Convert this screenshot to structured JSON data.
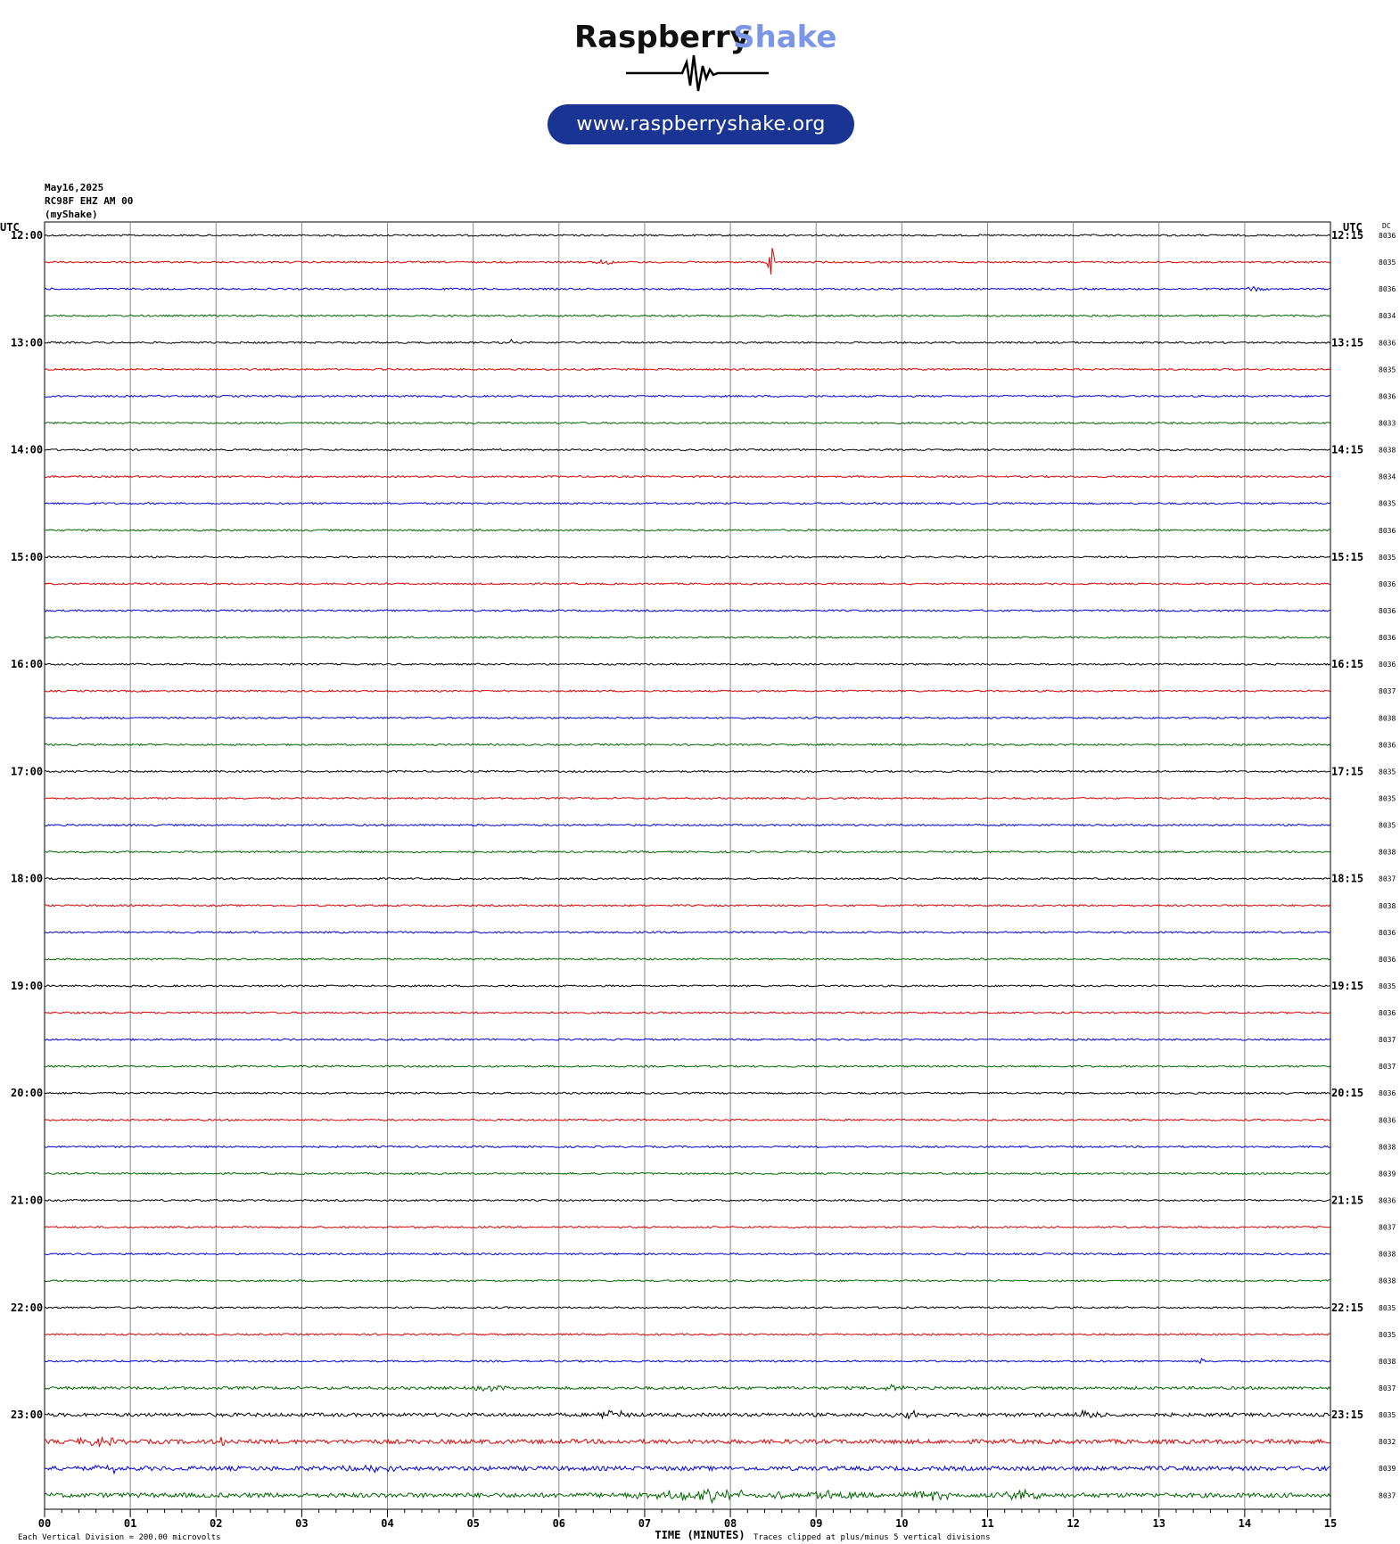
{
  "brand": {
    "name_part1": "Raspberry",
    "name_part2": "Shake",
    "url": "www.raspberryshake.org",
    "color_dark": "#111111",
    "color_accent": "#7b96e6",
    "pill_color": "#1a3493"
  },
  "header": {
    "date": "May16,2025",
    "station": "RC98F EHZ AM 00",
    "source": "(myShake)"
  },
  "chart_data": {
    "type": "line",
    "title": "",
    "xlabel": "TIME (MINUTES)",
    "left_axis_title": "UTC",
    "right_axis_title": "UTC",
    "dc_title": "DC",
    "xlim": [
      0,
      15
    ],
    "x_ticks": [
      "00",
      "01",
      "02",
      "03",
      "04",
      "05",
      "06",
      "07",
      "08",
      "09",
      "10",
      "11",
      "12",
      "13",
      "14",
      "15"
    ],
    "trace_colors": [
      "#000000",
      "#dd0000",
      "#0000dd",
      "#006600"
    ],
    "hour_rows": [
      {
        "left": "12:00",
        "right": "12:15",
        "dc": [
          "8036",
          "8035",
          "8036",
          "8034"
        ]
      },
      {
        "left": "13:00",
        "right": "13:15",
        "dc": [
          "8036",
          "8035",
          "8036",
          "8033"
        ]
      },
      {
        "left": "14:00",
        "right": "14:15",
        "dc": [
          "8038",
          "8034",
          "8035",
          "8036"
        ]
      },
      {
        "left": "15:00",
        "right": "15:15",
        "dc": [
          "8035",
          "8036",
          "8036",
          "8036"
        ]
      },
      {
        "left": "16:00",
        "right": "16:15",
        "dc": [
          "8036",
          "8037",
          "8038",
          "8036"
        ]
      },
      {
        "left": "17:00",
        "right": "17:15",
        "dc": [
          "8035",
          "8035",
          "8035",
          "8038"
        ]
      },
      {
        "left": "18:00",
        "right": "18:15",
        "dc": [
          "8037",
          "8038",
          "8036",
          "8036"
        ]
      },
      {
        "left": "19:00",
        "right": "19:15",
        "dc": [
          "8035",
          "8036",
          "8037",
          "8037"
        ]
      },
      {
        "left": "20:00",
        "right": "20:15",
        "dc": [
          "8036",
          "8036",
          "8038",
          "8039"
        ]
      },
      {
        "left": "21:00",
        "right": "21:15",
        "dc": [
          "8036",
          "8037",
          "8038",
          "8038"
        ]
      },
      {
        "left": "22:00",
        "right": "22:15",
        "dc": [
          "8035",
          "8035",
          "8038",
          "8037"
        ]
      },
      {
        "left": "23:00",
        "right": "23:15",
        "dc": [
          "8035",
          "8032",
          "8039",
          "8037"
        ]
      }
    ],
    "noise_amplitude": 1.0,
    "events": [
      {
        "trace": 1,
        "minute": 8.47,
        "amplitude": 30,
        "width_min": 0.05
      },
      {
        "trace": 4,
        "minute": 5.45,
        "amplitude": 4,
        "width_min": 0.04
      },
      {
        "trace": 1,
        "minute": 6.55,
        "amplitude": 3,
        "width_min": 0.2
      },
      {
        "trace": 2,
        "minute": 14.1,
        "amplitude": 3,
        "width_min": 0.2
      },
      {
        "trace": 42,
        "minute": 13.5,
        "amplitude": 6,
        "width_min": 0.04
      },
      {
        "trace": 43,
        "minute": 5.2,
        "amplitude": 3,
        "width_min": 0.3
      },
      {
        "trace": 43,
        "minute": 9.9,
        "amplitude": 3,
        "width_min": 0.3
      },
      {
        "trace": 44,
        "minute": 6.6,
        "amplitude": 5,
        "width_min": 0.3
      },
      {
        "trace": 44,
        "minute": 10.1,
        "amplitude": 4,
        "width_min": 0.3
      },
      {
        "trace": 44,
        "minute": 12.2,
        "amplitude": 4,
        "width_min": 0.4
      },
      {
        "trace": 45,
        "minute": 2.1,
        "amplitude": 5,
        "width_min": 0.2
      },
      {
        "trace": 45,
        "minute": 0.6,
        "amplitude": 4,
        "width_min": 0.4
      },
      {
        "trace": 46,
        "minute": 3.8,
        "amplitude": 4,
        "width_min": 0.4
      },
      {
        "trace": 46,
        "minute": 0.8,
        "amplitude": 4,
        "width_min": 0.3
      },
      {
        "trace": 47,
        "minute": 7.8,
        "amplitude": 6,
        "width_min": 1.2
      },
      {
        "trace": 47,
        "minute": 9.2,
        "amplitude": 5,
        "width_min": 0.4
      },
      {
        "trace": 47,
        "minute": 10.3,
        "amplitude": 5,
        "width_min": 0.4
      },
      {
        "trace": 47,
        "minute": 11.4,
        "amplitude": 5,
        "width_min": 0.3
      }
    ],
    "noisy_traces": {
      "43": 1.6,
      "44": 2.0,
      "45": 2.4,
      "46": 2.4,
      "47": 2.6
    },
    "footer_left": "Each Vertical Division =  200.00 microvolts",
    "footer_right": "Traces clipped at plus/minus 5 vertical divisions"
  }
}
